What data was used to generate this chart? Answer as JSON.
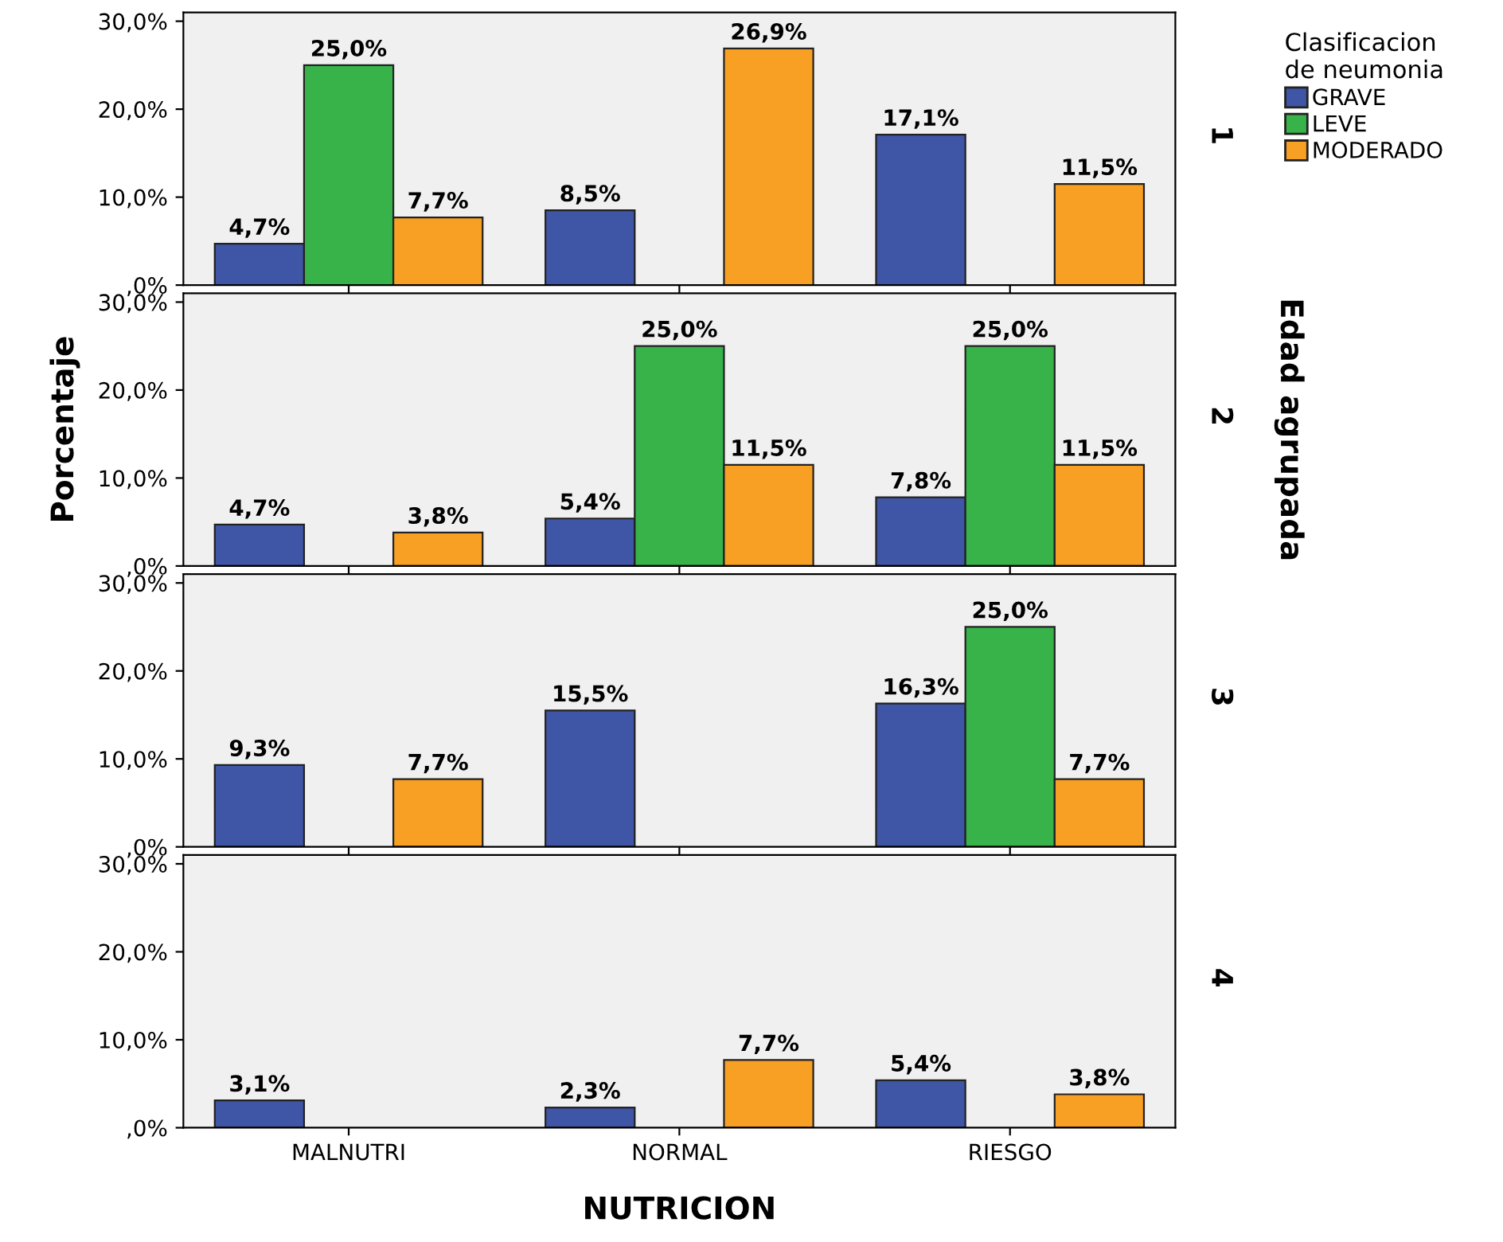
{
  "chart_data": [
    {
      "type": "bar",
      "y2label": "1",
      "legend_title": "Clasificacion\nde neumonia",
      "legend": "top right",
      "tick_labels": "y",
      "grid": false,
      "categories": [
        null,
        null,
        null
      ],
      "ylim": [
        0,
        31
      ],
      "yticks": [
        {
          "value": 0,
          "label": ",0%"
        },
        {
          "value": 10,
          "label": "10,0%"
        },
        {
          "value": 20,
          "label": "20,0%"
        },
        {
          "value": 30,
          "label": "30,0%"
        }
      ],
      "series": [
        {
          "name": "GRAVE",
          "color": "#3f55a5",
          "values": [
            4.7,
            8.5,
            17.1
          ],
          "value_labels": [
            "4,7%",
            "8,5%",
            "17,1%"
          ]
        },
        {
          "name": "LEVE",
          "color": "#37b34a",
          "values": [
            25.0,
            null,
            null
          ],
          "value_labels": [
            "25,0%",
            null,
            null
          ]
        },
        {
          "name": "MODERADO",
          "color": "#f7a024",
          "values": [
            7.7,
            26.9,
            11.5
          ],
          "value_labels": [
            "7,7%",
            "26,9%",
            "11,5%"
          ]
        }
      ]
    },
    {
      "type": "bar",
      "y2label": "2",
      "ylabel": "Porcentaje",
      "annotations": [
        "Edad agrupada"
      ],
      "tick_labels": "y",
      "grid": false,
      "categories": [
        null,
        null,
        null
      ],
      "ylim": [
        0,
        31
      ],
      "yticks": [
        {
          "value": 0,
          "label": ",0%"
        },
        {
          "value": 10,
          "label": "10,0%"
        },
        {
          "value": 20,
          "label": "20,0%"
        },
        {
          "value": 30,
          "label": "30,0%"
        }
      ],
      "series": [
        {
          "color": "#3f55a5",
          "values": [
            4.7,
            5.4,
            7.8
          ],
          "value_labels": [
            "4,7%",
            "5,4%",
            "7,8%"
          ]
        },
        {
          "color": "#37b34a",
          "values": [
            null,
            25.0,
            25.0
          ],
          "value_labels": [
            null,
            "25,0%",
            "25,0%"
          ]
        },
        {
          "color": "#f7a024",
          "values": [
            3.8,
            11.5,
            11.5
          ],
          "value_labels": [
            "3,8%",
            "11,5%",
            "11,5%"
          ]
        }
      ]
    },
    {
      "type": "bar",
      "y2label": "3",
      "tick_labels": "y",
      "grid": false,
      "categories": [
        null,
        null,
        null
      ],
      "ylim": [
        0,
        31
      ],
      "yticks": [
        {
          "value": 0,
          "label": ",0%"
        },
        {
          "value": 10,
          "label": "10,0%"
        },
        {
          "value": 20,
          "label": "20,0%"
        },
        {
          "value": 30,
          "label": "30,0%"
        }
      ],
      "series": [
        {
          "color": "#3f55a5",
          "values": [
            9.3,
            15.5,
            16.3
          ],
          "value_labels": [
            "9,3%",
            "15,5%",
            "16,3%"
          ]
        },
        {
          "color": "#37b34a",
          "values": [
            null,
            null,
            25.0
          ],
          "value_labels": [
            null,
            null,
            "25,0%"
          ]
        },
        {
          "color": "#f7a024",
          "values": [
            7.7,
            null,
            7.7
          ],
          "value_labels": [
            "7,7%",
            null,
            "7,7%"
          ]
        }
      ]
    },
    {
      "type": "bar",
      "y2label": "4",
      "xlabel": "NUTRICION",
      "grid": false,
      "categories": [
        "MALNUTRI",
        "NORMAL",
        "RIESGO"
      ],
      "ylim": [
        0,
        31
      ],
      "yticks": [
        {
          "value": 0,
          "label": ",0%"
        },
        {
          "value": 10,
          "label": "10,0%"
        },
        {
          "value": 20,
          "label": "20,0%"
        },
        {
          "value": 30,
          "label": "30,0%"
        }
      ],
      "series": [
        {
          "color": "#3f55a5",
          "values": [
            3.1,
            2.3,
            5.4
          ],
          "value_labels": [
            "3,1%",
            "2,3%",
            "5,4%"
          ]
        },
        {
          "color": "#37b34a",
          "values": [
            null,
            null,
            null
          ],
          "value_labels": [
            null,
            null,
            null
          ]
        },
        {
          "color": "#f7a024",
          "values": [
            null,
            7.7,
            3.8
          ],
          "value_labels": [
            null,
            "7,7%",
            "3,8%"
          ]
        }
      ]
    }
  ]
}
